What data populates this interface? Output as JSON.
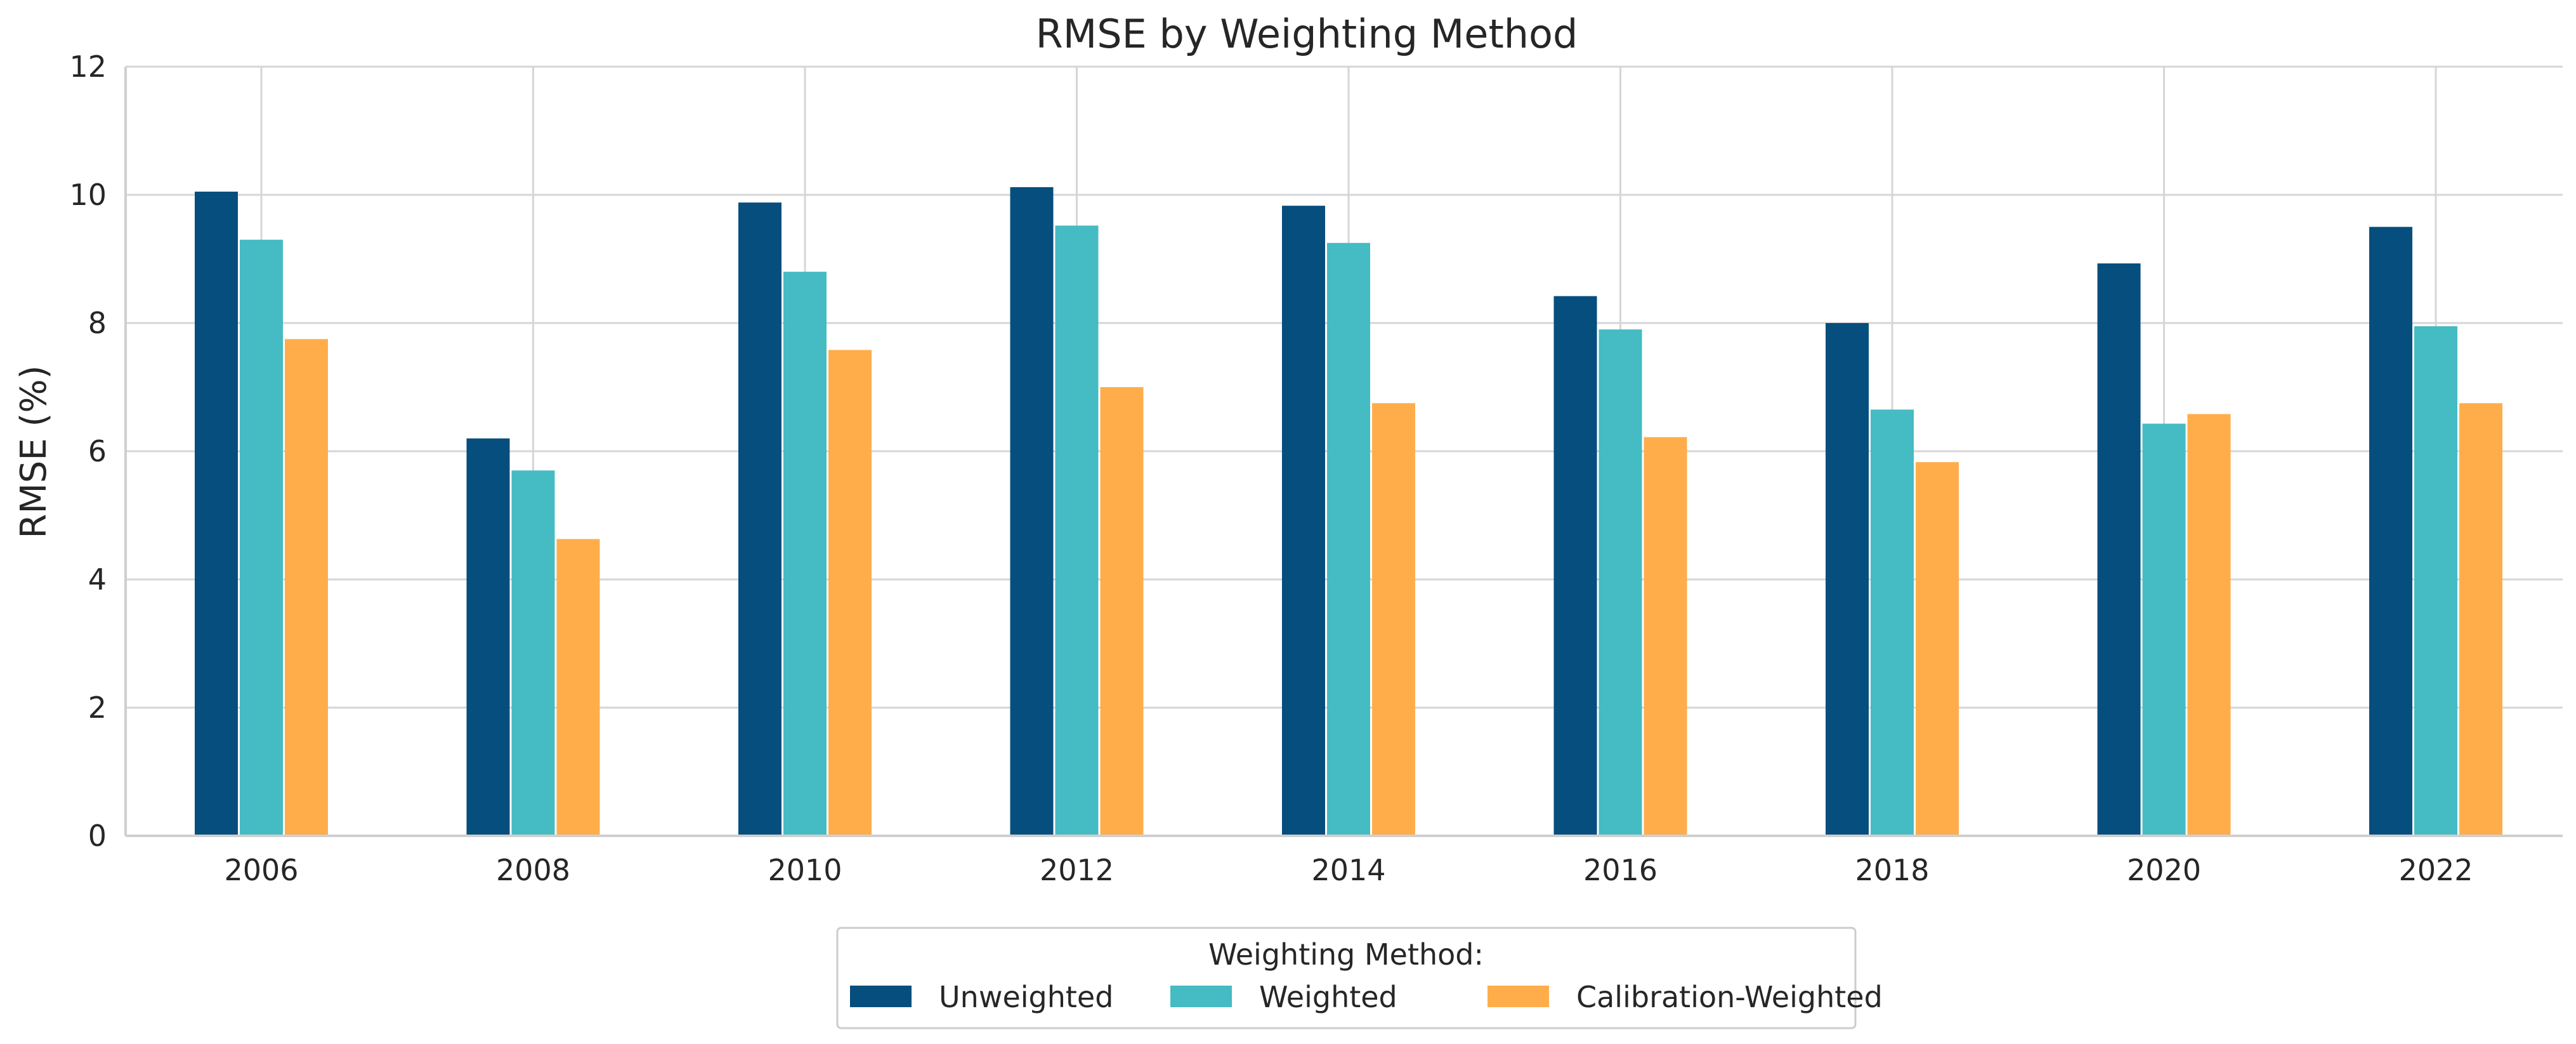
{
  "chart_data": {
    "type": "bar",
    "title": "RMSE by Weighting Method",
    "xlabel": "",
    "ylabel": "RMSE (%)",
    "ylim": [
      0,
      12
    ],
    "yticks": [
      "0",
      "2",
      "4",
      "6",
      "8",
      "10",
      "12"
    ],
    "categories": [
      "2006",
      "2008",
      "2010",
      "2012",
      "2014",
      "2016",
      "2018",
      "2020",
      "2022"
    ],
    "series": [
      {
        "name": "Unweighted",
        "color": "#054e7d",
        "values": [
          10.05,
          6.2,
          9.88,
          10.12,
          9.83,
          8.42,
          8.0,
          8.93,
          9.5
        ]
      },
      {
        "name": "Weighted",
        "color": "#45bbc3",
        "values": [
          9.3,
          5.7,
          8.8,
          9.52,
          9.25,
          7.9,
          6.65,
          6.43,
          7.95
        ]
      },
      {
        "name": "Calibration-Weighted",
        "color": "#ffad4b",
        "values": [
          7.75,
          4.63,
          7.58,
          7.0,
          6.75,
          6.22,
          5.83,
          6.58,
          6.75
        ]
      }
    ],
    "grid": true,
    "legend": {
      "title": "Weighting Method:",
      "position": "bottom-center"
    }
  }
}
